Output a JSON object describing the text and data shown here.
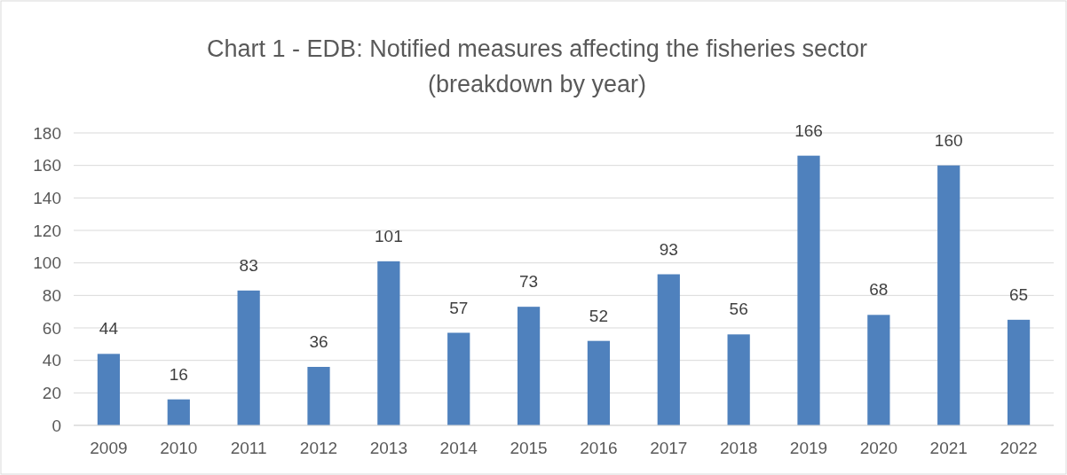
{
  "chart_data": {
    "type": "bar",
    "title": "Chart 1 - EDB: Notified measures affecting the fisheries sector\n(breakdown by year)",
    "categories": [
      "2009",
      "2010",
      "2011",
      "2012",
      "2013",
      "2014",
      "2015",
      "2016",
      "2017",
      "2018",
      "2019",
      "2020",
      "2021",
      "2022"
    ],
    "values": [
      44,
      16,
      83,
      36,
      101,
      57,
      73,
      52,
      93,
      56,
      166,
      68,
      160,
      65
    ],
    "color": "#4f81bd",
    "ylim": [
      0,
      180
    ],
    "yticks": [
      0,
      20,
      40,
      60,
      80,
      100,
      120,
      140,
      160,
      180
    ],
    "grid": "y",
    "data_labels": true
  }
}
